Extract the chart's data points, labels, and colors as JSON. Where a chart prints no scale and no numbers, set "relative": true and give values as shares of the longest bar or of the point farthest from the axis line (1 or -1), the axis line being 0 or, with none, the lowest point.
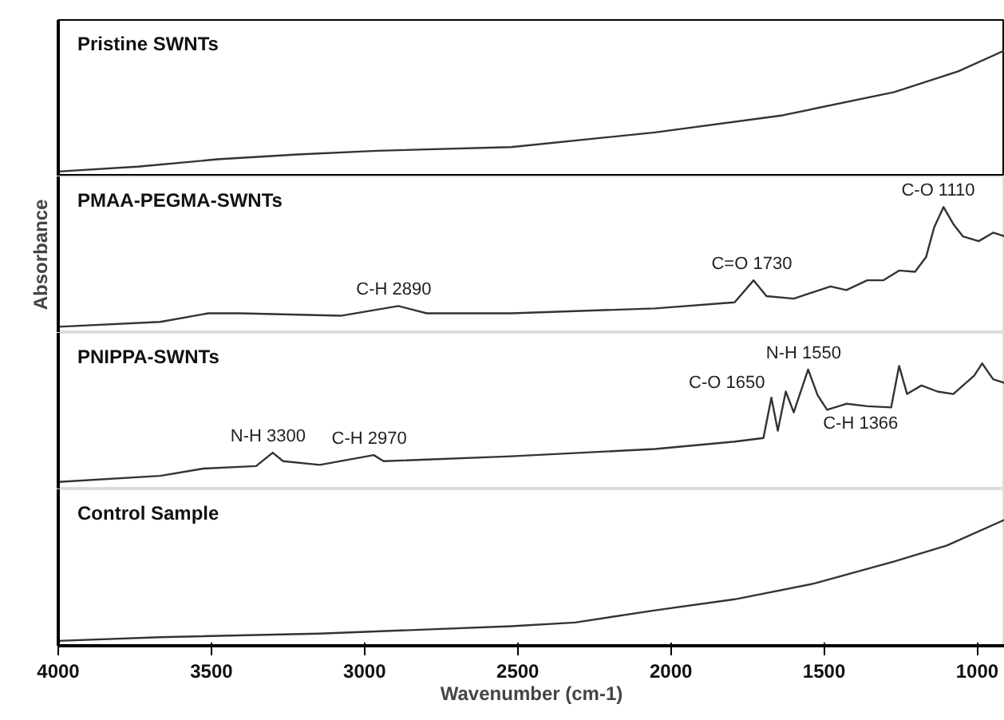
{
  "chart_data": [
    {
      "type": "line",
      "title": "Pristine SWNTs",
      "relative": true,
      "color": "#333333",
      "xlim": [
        4000,
        910
      ],
      "xticks": [
        4000,
        3500,
        3000,
        2500,
        2000,
        1500,
        1000
      ],
      "tick_labels": false,
      "x": [
        4000,
        3740,
        3479,
        3219,
        2958,
        2521,
        2052,
        1635,
        1271,
        1062,
        911
      ],
      "values": [
        0.01,
        0.05,
        0.11,
        0.15,
        0.18,
        0.21,
        0.33,
        0.47,
        0.66,
        0.83,
        1.0
      ]
    },
    {
      "type": "line",
      "title": "PMAA-PEGMA-SWNTs",
      "ylabel": "Absorbance",
      "relative": true,
      "color": "#333333",
      "xlim": [
        4000,
        910
      ],
      "xticks": [
        4000,
        3500,
        3000,
        2500,
        2000,
        1500,
        1000
      ],
      "tick_labels": false,
      "x": [
        4000,
        3667,
        3510,
        3406,
        3078,
        2890,
        2797,
        2521,
        2052,
        1792,
        1730,
        1688,
        1599,
        1479,
        1427,
        1359,
        1307,
        1255,
        1203,
        1167,
        1141,
        1110,
        1078,
        1047,
        995,
        948,
        911
      ],
      "values": [
        0.02,
        0.06,
        0.13,
        0.13,
        0.11,
        0.19,
        0.13,
        0.13,
        0.17,
        0.22,
        0.4,
        0.27,
        0.25,
        0.35,
        0.32,
        0.4,
        0.4,
        0.48,
        0.47,
        0.59,
        0.83,
        1.0,
        0.86,
        0.76,
        0.72,
        0.79,
        0.76
      ],
      "annotations": [
        {
          "text": "C-H 2890",
          "x": 2890,
          "y": 0.19
        },
        {
          "text": "C=O 1730",
          "x": 1730,
          "y": 0.4
        },
        {
          "text": "C-O 1110",
          "x": 1110,
          "y": 1.0
        }
      ]
    },
    {
      "type": "line",
      "title": "PNIPPA-SWNTs",
      "relative": true,
      "color": "#333333",
      "xlim": [
        4000,
        910
      ],
      "xticks": [
        4000,
        3500,
        3000,
        2500,
        2000,
        1500,
        1000
      ],
      "tick_labels": false,
      "x": [
        4000,
        3667,
        3526,
        3354,
        3300,
        3266,
        3146,
        2970,
        2938,
        2521,
        2052,
        1792,
        1698,
        1672,
        1651,
        1625,
        1599,
        1552,
        1521,
        1490,
        1427,
        1359,
        1281,
        1255,
        1229,
        1182,
        1130,
        1078,
        1010,
        984,
        948,
        911
      ],
      "values": [
        0.03,
        0.08,
        0.14,
        0.16,
        0.27,
        0.2,
        0.17,
        0.25,
        0.2,
        0.24,
        0.3,
        0.36,
        0.39,
        0.72,
        0.45,
        0.77,
        0.6,
        0.95,
        0.74,
        0.62,
        0.67,
        0.65,
        0.64,
        0.98,
        0.75,
        0.82,
        0.77,
        0.75,
        0.9,
        1.0,
        0.87,
        0.84
      ],
      "annotations": [
        {
          "text": "N-H 1550",
          "x": 1552,
          "y": 0.95
        },
        {
          "text": "C-O 1650",
          "x": 1651,
          "y": 0.45
        },
        {
          "text": "C-H 1366",
          "x": 1366,
          "y": 0.65
        },
        {
          "text": "N-H 3300",
          "x": 3300,
          "y": 0.27
        },
        {
          "text": "C-H 2970",
          "x": 2970,
          "y": 0.25
        }
      ]
    },
    {
      "type": "line",
      "title": "Control Sample",
      "xlabel": "Wavenumber (cm-1)",
      "relative": true,
      "color": "#333333",
      "xlim": [
        4000,
        910
      ],
      "xticks": [
        4000,
        3500,
        3000,
        2500,
        2000,
        1500,
        1000
      ],
      "tick_labels": "x",
      "x": [
        4000,
        3667,
        3146,
        2521,
        2313,
        2052,
        1792,
        1531,
        1271,
        1099,
        911
      ],
      "values": [
        0.01,
        0.04,
        0.07,
        0.13,
        0.16,
        0.26,
        0.35,
        0.48,
        0.66,
        0.79,
        1.0
      ]
    }
  ]
}
